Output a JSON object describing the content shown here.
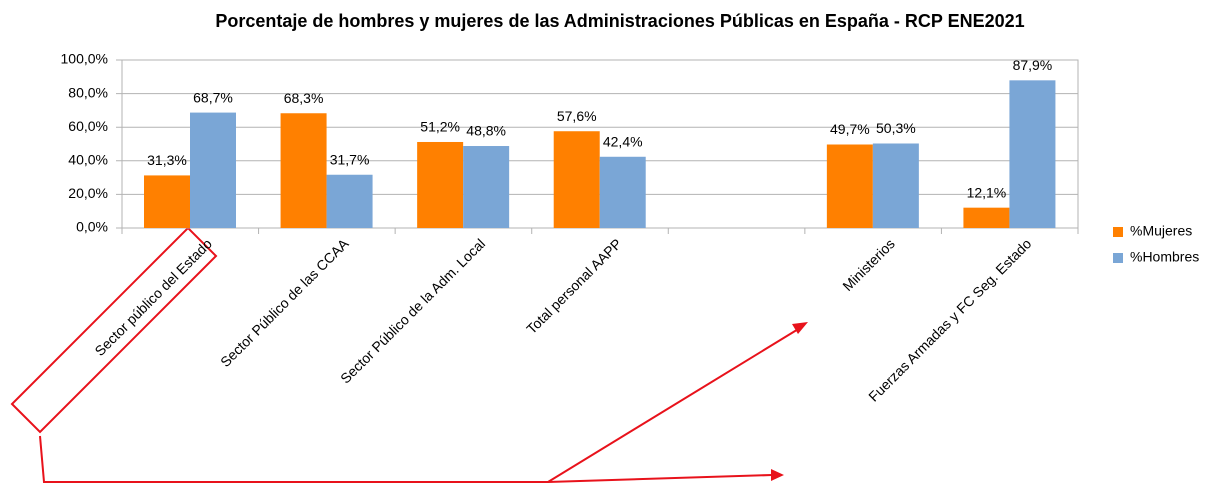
{
  "chart_data": {
    "type": "bar",
    "title": "Porcentaje de hombres y mujeres de las Administraciones Públicas en España - RCP ENE2021",
    "categories": [
      "Sector público del Estado",
      "Sector Público de las CCAA",
      "Sector Público de la Adm. Local",
      "Total personal AAPP",
      null,
      "Ministerios",
      "Fuerzas Armadas y FC Seg. Estado"
    ],
    "series": [
      {
        "name": "%Mujeres",
        "color": "#ff8000",
        "values": [
          31.3,
          68.3,
          51.2,
          57.6,
          null,
          49.7,
          12.1
        ],
        "value_labels": [
          "31,3%",
          "68,3%",
          "51,2%",
          "57,6%",
          null,
          "49,7%",
          "12,1%"
        ]
      },
      {
        "name": "%Hombres",
        "color": "#7aa6d6",
        "values": [
          68.7,
          31.7,
          48.8,
          42.4,
          null,
          50.3,
          87.9
        ],
        "value_labels": [
          "68,7%",
          "31,7%",
          "48,8%",
          "42,4%",
          null,
          "50,3%",
          "87,9%"
        ]
      }
    ],
    "ylim": [
      0,
      100
    ],
    "yticks": [
      {
        "value": 0,
        "label": "0,0%"
      },
      {
        "value": 20,
        "label": "20,0%"
      },
      {
        "value": 40,
        "label": "40,0%"
      },
      {
        "value": 60,
        "label": "60,0%"
      },
      {
        "value": 80,
        "label": "80,0%"
      },
      {
        "value": 100,
        "label": "100,0%"
      }
    ],
    "grid": true,
    "legend": "right"
  }
}
